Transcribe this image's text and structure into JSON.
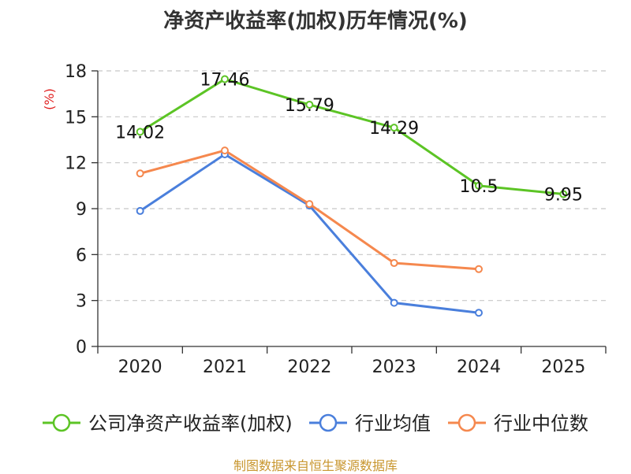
{
  "chart_data": {
    "type": "line",
    "title": "净资产收益率(加权)历年情况(%)",
    "ylabel": "(%)",
    "xlabel": "",
    "ylim": [
      0,
      18
    ],
    "yticks": [
      0,
      3,
      6,
      9,
      12,
      15,
      18
    ],
    "categories": [
      "2020",
      "2021",
      "2022",
      "2023",
      "2024",
      "2025"
    ],
    "grid": true,
    "legend_position": "bottom",
    "series": [
      {
        "name": "公司净资产收益率(加权)",
        "color": "#5cc425",
        "values": [
          14.02,
          17.46,
          15.79,
          14.29,
          10.5,
          9.95
        ],
        "labels": [
          "14.02",
          "17.46",
          "15.79",
          "14.29",
          "10.5",
          "9.95"
        ]
      },
      {
        "name": "行业均值",
        "color": "#4a7fdc",
        "values": [
          8.85,
          12.55,
          9.2,
          2.85,
          2.2,
          null
        ]
      },
      {
        "name": "行业中位数",
        "color": "#f5884e",
        "values": [
          11.3,
          12.8,
          9.3,
          5.45,
          5.05,
          null
        ]
      }
    ]
  },
  "source": {
    "text": "制图数据来自恒生聚源数据库",
    "color": "#c8962e"
  },
  "ylabel_color": "#e02020"
}
